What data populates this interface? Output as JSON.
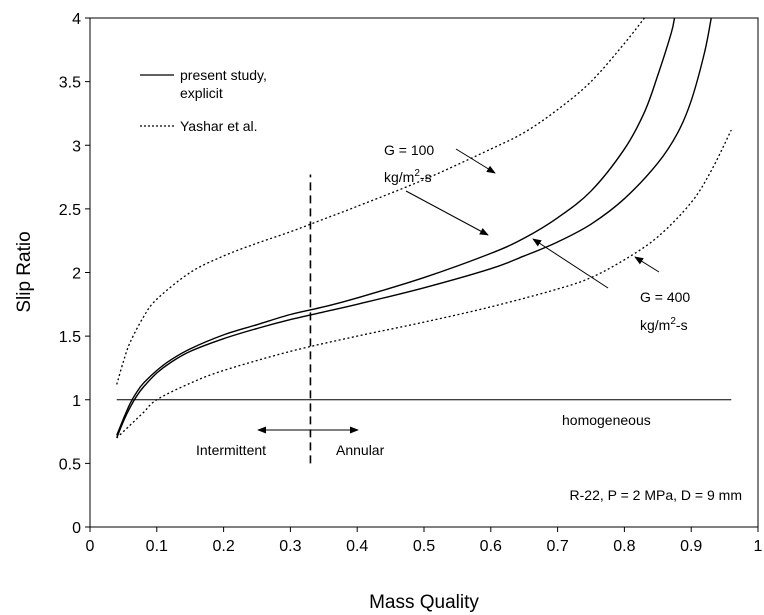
{
  "chart_data": {
    "type": "line",
    "title": "",
    "xlabel": "Mass Quality",
    "ylabel": "Slip Ratio",
    "xlim": [
      0,
      1
    ],
    "ylim": [
      0,
      4
    ],
    "x_ticks": [
      "0",
      "0.1",
      "0.2",
      "0.3",
      "0.4",
      "0.5",
      "0.6",
      "0.7",
      "0.8",
      "0.9",
      "1"
    ],
    "y_ticks": [
      "0",
      "0.5",
      "1",
      "1.5",
      "2",
      "2.5",
      "3",
      "3.5",
      "4"
    ],
    "grid": false,
    "legend_position": "top-left",
    "legend": [
      {
        "label_line1": "present study,",
        "label_line2": "explicit",
        "style": "solid"
      },
      {
        "label_line1": "Yashar et al.",
        "label_line2": "",
        "style": "dotted"
      }
    ],
    "series": [
      {
        "style": "solid",
        "points": [
          [
            0.04,
            0.72
          ],
          [
            0.05,
            0.85
          ],
          [
            0.06,
            0.97
          ],
          [
            0.07,
            1.06
          ],
          [
            0.08,
            1.13
          ],
          [
            0.1,
            1.23
          ],
          [
            0.12,
            1.31
          ],
          [
            0.15,
            1.4
          ],
          [
            0.2,
            1.51
          ],
          [
            0.25,
            1.59
          ],
          [
            0.3,
            1.67
          ],
          [
            0.35,
            1.73
          ],
          [
            0.4,
            1.8
          ],
          [
            0.5,
            1.96
          ],
          [
            0.6,
            2.15
          ],
          [
            0.65,
            2.27
          ],
          [
            0.7,
            2.43
          ],
          [
            0.75,
            2.64
          ],
          [
            0.8,
            2.97
          ],
          [
            0.83,
            3.26
          ],
          [
            0.85,
            3.55
          ],
          [
            0.87,
            3.88
          ],
          [
            0.875,
            4.0
          ]
        ]
      },
      {
        "style": "solid",
        "points": [
          [
            0.04,
            0.7
          ],
          [
            0.05,
            0.83
          ],
          [
            0.06,
            0.94
          ],
          [
            0.07,
            1.03
          ],
          [
            0.08,
            1.1
          ],
          [
            0.1,
            1.21
          ],
          [
            0.12,
            1.29
          ],
          [
            0.15,
            1.38
          ],
          [
            0.2,
            1.48
          ],
          [
            0.25,
            1.56
          ],
          [
            0.3,
            1.63
          ],
          [
            0.35,
            1.69
          ],
          [
            0.4,
            1.75
          ],
          [
            0.5,
            1.88
          ],
          [
            0.6,
            2.03
          ],
          [
            0.65,
            2.13
          ],
          [
            0.7,
            2.24
          ],
          [
            0.75,
            2.38
          ],
          [
            0.8,
            2.58
          ],
          [
            0.85,
            2.86
          ],
          [
            0.88,
            3.1
          ],
          [
            0.9,
            3.35
          ],
          [
            0.92,
            3.73
          ],
          [
            0.93,
            4.0
          ]
        ]
      },
      {
        "style": "dotted",
        "points": [
          [
            0.04,
            1.12
          ],
          [
            0.05,
            1.3
          ],
          [
            0.06,
            1.45
          ],
          [
            0.08,
            1.65
          ],
          [
            0.1,
            1.79
          ],
          [
            0.15,
            2.0
          ],
          [
            0.2,
            2.13
          ],
          [
            0.25,
            2.23
          ],
          [
            0.3,
            2.32
          ],
          [
            0.35,
            2.42
          ],
          [
            0.4,
            2.52
          ],
          [
            0.5,
            2.73
          ],
          [
            0.6,
            2.97
          ],
          [
            0.65,
            3.1
          ],
          [
            0.7,
            3.28
          ],
          [
            0.75,
            3.5
          ],
          [
            0.8,
            3.8
          ],
          [
            0.83,
            4.0
          ]
        ]
      },
      {
        "style": "dotted",
        "points": [
          [
            0.04,
            0.7
          ],
          [
            0.06,
            0.8
          ],
          [
            0.08,
            0.9
          ],
          [
            0.1,
            1.0
          ],
          [
            0.15,
            1.13
          ],
          [
            0.2,
            1.23
          ],
          [
            0.3,
            1.38
          ],
          [
            0.4,
            1.5
          ],
          [
            0.5,
            1.61
          ],
          [
            0.6,
            1.73
          ],
          [
            0.7,
            1.87
          ],
          [
            0.75,
            1.96
          ],
          [
            0.8,
            2.1
          ],
          [
            0.85,
            2.28
          ],
          [
            0.9,
            2.55
          ],
          [
            0.93,
            2.8
          ],
          [
            0.96,
            3.12
          ]
        ]
      }
    ],
    "reference_lines": [
      {
        "orientation": "horizontal",
        "y": 1,
        "x_range": [
          0.04,
          0.96
        ],
        "style": "solid",
        "label": "homogeneous"
      },
      {
        "orientation": "vertical",
        "x": 0.33,
        "y_range": [
          0.5,
          2.77
        ],
        "style": "dashed"
      }
    ],
    "regime_labels": {
      "left": "Intermittent",
      "right": "Annular"
    },
    "annotations": {
      "g100_line1": "G = 100",
      "g100_line2_pre": "kg/m",
      "g100_line2_sup": "2",
      "g100_line2_post": "-s",
      "g400_line1": "G = 400",
      "g400_line2_pre": "kg/m",
      "g400_line2_sup": "2",
      "g400_line2_post": "-s",
      "conditions": "R-22, P = 2 MPa, D = 9 mm"
    }
  }
}
